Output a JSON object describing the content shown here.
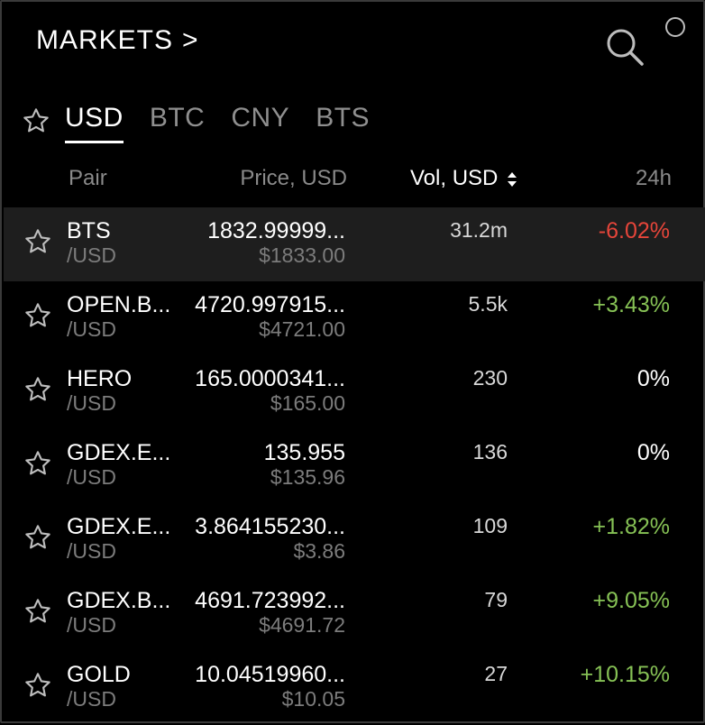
{
  "header": {
    "title": "MARKETS",
    "chevron": ">"
  },
  "tabs": [
    {
      "label": "USD",
      "active": true
    },
    {
      "label": "BTC",
      "active": false
    },
    {
      "label": "CNY",
      "active": false
    },
    {
      "label": "BTS",
      "active": false
    }
  ],
  "columns": {
    "pair": "Pair",
    "price": "Price, USD",
    "volume": "Vol, USD",
    "change": "24h"
  },
  "colors": {
    "negative": "#e5453a",
    "positive": "#86c155",
    "neutral": "#ffffff",
    "selected_row": "#1e1e1e"
  },
  "rows": [
    {
      "pair": "BTS",
      "quote": "/USD",
      "price": "1832.99999...",
      "price_usd": "$1833.00",
      "volume": "31.2m",
      "change": "-6.02%",
      "trend": "negative",
      "selected": true
    },
    {
      "pair": "OPEN.B...",
      "quote": "/USD",
      "price": "4720.997915...",
      "price_usd": "$4721.00",
      "volume": "5.5k",
      "change": "+3.43%",
      "trend": "positive",
      "selected": false
    },
    {
      "pair": "HERO",
      "quote": "/USD",
      "price": "165.0000341...",
      "price_usd": "$165.00",
      "volume": "230",
      "change": "0%",
      "trend": "neutral",
      "selected": false
    },
    {
      "pair": "GDEX.E...",
      "quote": "/USD",
      "price": "135.955",
      "price_usd": "$135.96",
      "volume": "136",
      "change": "0%",
      "trend": "neutral",
      "selected": false
    },
    {
      "pair": "GDEX.E...",
      "quote": "/USD",
      "price": "3.864155230...",
      "price_usd": "$3.86",
      "volume": "109",
      "change": "+1.82%",
      "trend": "positive",
      "selected": false
    },
    {
      "pair": "GDEX.B...",
      "quote": "/USD",
      "price": "4691.723992...",
      "price_usd": "$4691.72",
      "volume": "79",
      "change": "+9.05%",
      "trend": "positive",
      "selected": false
    },
    {
      "pair": "GOLD",
      "quote": "/USD",
      "price": "10.04519960...",
      "price_usd": "$10.05",
      "volume": "27",
      "change": "+10.15%",
      "trend": "positive",
      "selected": false
    }
  ]
}
